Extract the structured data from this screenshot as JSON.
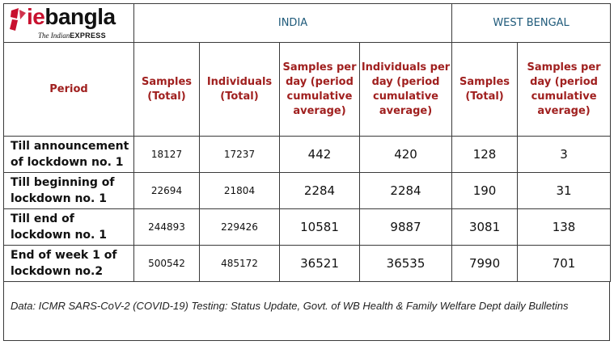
{
  "brand": {
    "logo_prefix": "ie",
    "logo_name": "bangla",
    "tagline_prefix": "The Indian",
    "tagline_name": "EXPRESS",
    "accent": "#c8102e"
  },
  "groups": {
    "india": "INDIA",
    "west_bengal": "WEST BENGAL"
  },
  "headers": {
    "period": "Period",
    "india_samples_total": "Samples (Total)",
    "india_individuals_total": "Individuals (Total)",
    "india_samples_per_day": "Samples per day (period cumulative average)",
    "india_individuals_per_day": "Individuals per day (period cumulative average)",
    "wb_samples_total": "Samples (Total)",
    "wb_samples_per_day": "Samples per day (period cumulative average)"
  },
  "rows": [
    {
      "period": "Till announcement of lockdown no. 1",
      "india_samples": "18127",
      "india_individuals": "17237",
      "india_samples_per_day": "442",
      "india_individuals_per_day": "420",
      "wb_samples": "128",
      "wb_samples_per_day": "3"
    },
    {
      "period": "Till beginning of lockdown no. 1",
      "india_samples": "22694",
      "india_individuals": "21804",
      "india_samples_per_day": "2284",
      "india_individuals_per_day": "2284",
      "wb_samples": "190",
      "wb_samples_per_day": "31"
    },
    {
      "period": "Till end of lockdown no. 1",
      "india_samples": "244893",
      "india_individuals": "229426",
      "india_samples_per_day": "10581",
      "india_individuals_per_day": "9887",
      "wb_samples": "3081",
      "wb_samples_per_day": "138"
    },
    {
      "period": "End of week 1 of lockdown no.2",
      "india_samples": "500542",
      "india_individuals": "485172",
      "india_samples_per_day": "36521",
      "india_individuals_per_day": "36535",
      "wb_samples": "7990",
      "wb_samples_per_day": "701"
    }
  ],
  "footnote": "Data: ICMR SARS-CoV-2 (COVID-19) Testing: Status Update, Govt. of WB Health & Family Welfare Dept daily Bulletins",
  "colors": {
    "group_header": "#1f5a7a",
    "column_header": "#a0201f"
  }
}
